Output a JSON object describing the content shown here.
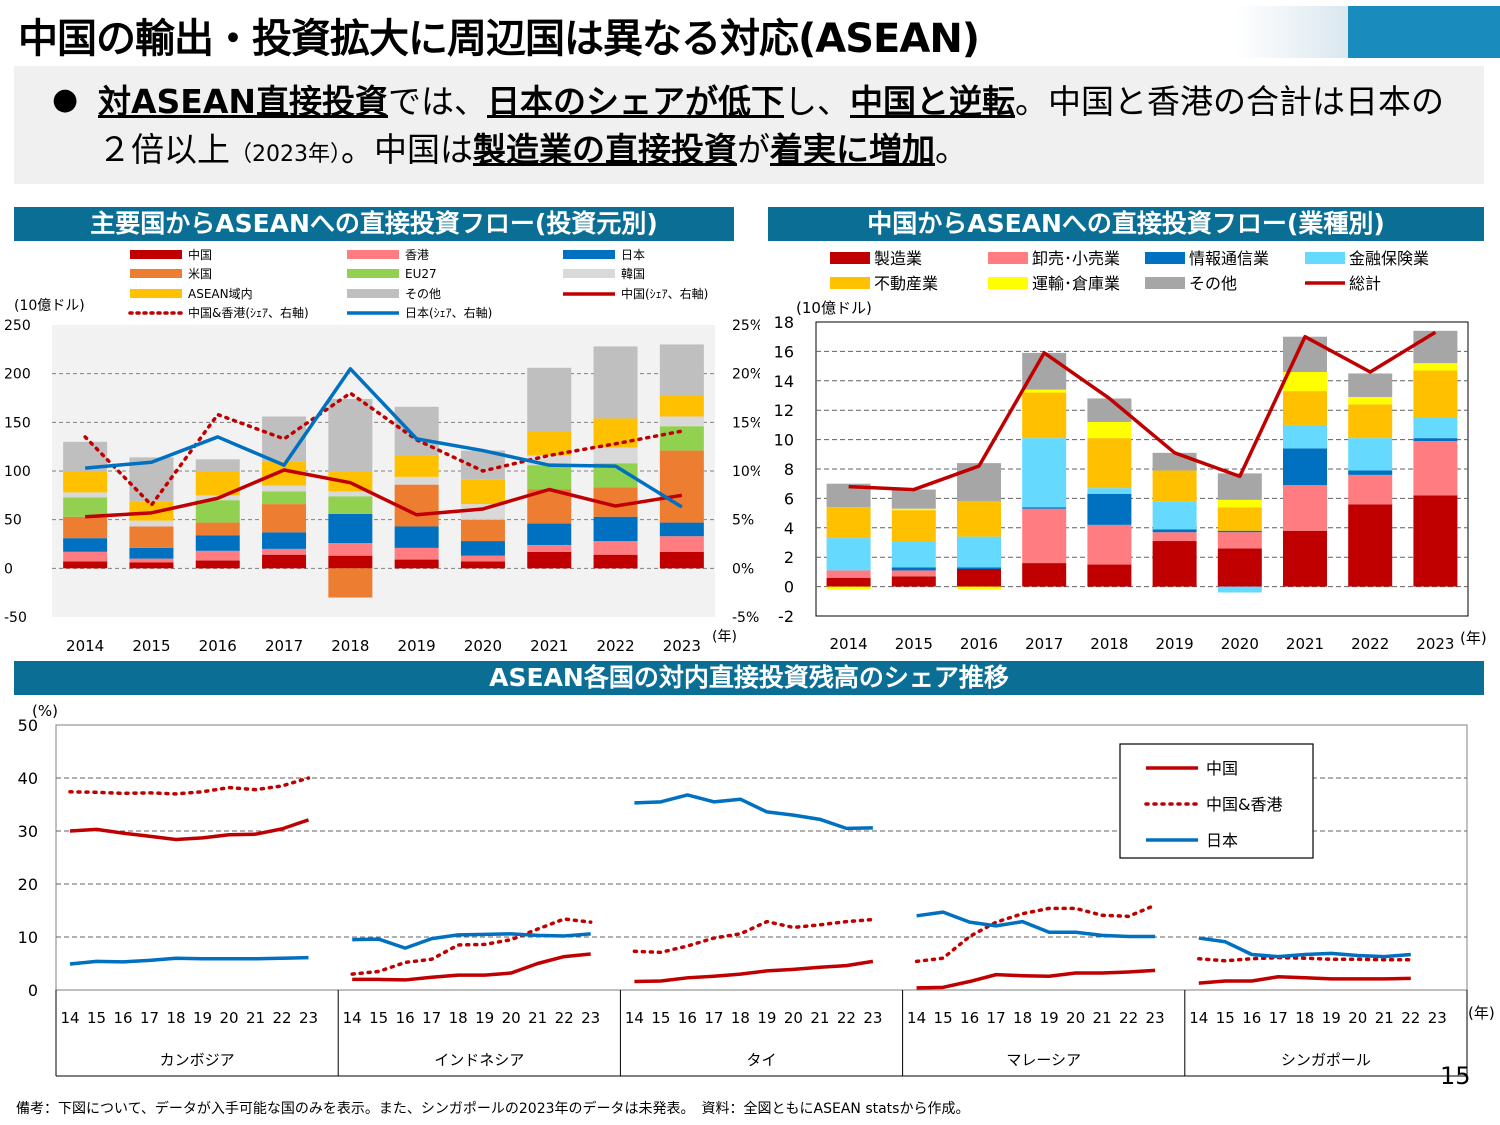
{
  "title": "中国の輸出・投資拡大に周辺国は異なる対応(ASEAN)",
  "bullet": {
    "t1": "対ASEAN直接投資",
    "t2": "では、",
    "t3": "日本のシェアが低下",
    "t4": "し、",
    "t5": "中国と逆転",
    "t6": "。中国と香港の合計は日本の２倍以上",
    "t7": "（2023年）",
    "t8": "。中国は",
    "t9": "製造業の直接投資",
    "t10": "が",
    "t11": "着実に増加",
    "t12": "。"
  },
  "colors": {
    "china": "#c00000",
    "hongkong": "#ff7c80",
    "japan": "#0070c0",
    "us": "#ed7d31",
    "eu": "#92d050",
    "korea": "#d9d9d9",
    "asean": "#ffc000",
    "other": "#bfbfbf",
    "header": "#0a6e95",
    "manufacturing": "#c00000",
    "wholesale": "#ff7c80",
    "ict": "#0070c0",
    "finance": "#66d9ff",
    "realestate": "#ffc000",
    "transport": "#ffff00",
    "others2": "#a6a6a6"
  },
  "note": "備考：下図について、データが入手可能な国のみを表示。また、シンガポールの2023年のデータは未発表。　資料：全図ともにASEAN statsから作成。",
  "page_number": "15",
  "chart_data": [
    {
      "type": "bar",
      "title": "主要国からASEANへの直接投資フロー(投資元別)",
      "ylabel": "(10億ドル)",
      "xlabel": "(年)",
      "ylim": [
        -50,
        250
      ],
      "y2lim": [
        -5,
        25
      ],
      "yticks": [
        -50,
        0,
        50,
        100,
        150,
        200,
        250
      ],
      "y2ticks": [
        "-5%",
        "0%",
        "5%",
        "10%",
        "15%",
        "20%",
        "25%"
      ],
      "categories": [
        "2014",
        "2015",
        "2016",
        "2017",
        "2018",
        "2019",
        "2020",
        "2021",
        "2022",
        "2023"
      ],
      "legend": [
        "中国",
        "香港",
        "日本",
        "米国",
        "EU27",
        "韓国",
        "ASEAN域内",
        "その他",
        "中国(ｼｪｱ、右軸)",
        "中国&香港(ｼｪｱ、右軸)",
        "日本(ｼｪｱ、右軸)"
      ],
      "series": [
        {
          "name": "中国",
          "values": [
            7,
            6,
            8,
            14,
            13,
            9,
            7,
            17,
            14,
            17
          ]
        },
        {
          "name": "香港",
          "values": [
            10,
            4,
            10,
            6,
            13,
            12,
            6,
            7,
            14,
            16
          ]
        },
        {
          "name": "日本",
          "values": [
            14,
            11,
            16,
            17,
            30,
            22,
            15,
            22,
            25,
            14
          ]
        },
        {
          "name": "米国",
          "values": [
            22,
            22,
            13,
            29,
            -30,
            43,
            22,
            35,
            30,
            74
          ]
        },
        {
          "name": "EU27",
          "values": [
            20,
            0,
            23,
            13,
            18,
            0,
            0,
            25,
            25,
            25
          ]
        },
        {
          "name": "韓国",
          "values": [
            5,
            6,
            5,
            6,
            5,
            8,
            16,
            10,
            16,
            10
          ]
        },
        {
          "name": "ASEAN域内",
          "values": [
            22,
            20,
            25,
            25,
            20,
            22,
            25,
            25,
            30,
            22
          ]
        },
        {
          "name": "その他",
          "values": [
            30,
            45,
            12,
            46,
            75,
            50,
            30,
            65,
            74,
            52
          ]
        }
      ],
      "lines": [
        {
          "name": "中国(ｼｪｱ、右軸)",
          "style": "solid",
          "values": [
            5.3,
            5.7,
            7.2,
            10.1,
            8.8,
            5.5,
            6.1,
            8.1,
            6.4,
            7.5
          ]
        },
        {
          "name": "中国&香港(ｼｪｱ、右軸)",
          "style": "dotted",
          "values": [
            13.5,
            6.5,
            15.8,
            13.3,
            18.0,
            13.2,
            10.0,
            11.6,
            12.8,
            14.1
          ]
        },
        {
          "name": "日本(ｼｪｱ、右軸)",
          "style": "solid",
          "values": [
            10.3,
            10.9,
            13.5,
            10.6,
            20.5,
            13.3,
            12.1,
            10.6,
            10.5,
            6.3
          ]
        }
      ]
    },
    {
      "type": "bar",
      "title": "中国からASEANへの直接投資フロー(業種別)",
      "ylabel": "(10億ドル)",
      "xlabel": "(年)",
      "ylim": [
        -2,
        18
      ],
      "yticks": [
        -2,
        0,
        2,
        4,
        6,
        8,
        10,
        12,
        14,
        16,
        18
      ],
      "categories": [
        "2014",
        "2015",
        "2016",
        "2017",
        "2018",
        "2019",
        "2020",
        "2021",
        "2022",
        "2023"
      ],
      "legend": [
        "製造業",
        "卸売･小売業",
        "情報通信業",
        "金融保険業",
        "不動産業",
        "運輸･倉庫業",
        "その他",
        "総計"
      ],
      "series": [
        {
          "name": "製造業",
          "values": [
            0.6,
            0.7,
            1.2,
            1.6,
            1.5,
            3.1,
            2.6,
            3.8,
            5.6,
            6.2
          ]
        },
        {
          "name": "卸売･小売業",
          "values": [
            0.5,
            0.4,
            0.0,
            3.7,
            2.7,
            0.6,
            1.1,
            3.1,
            2.0,
            3.7
          ]
        },
        {
          "name": "情報通信業",
          "values": [
            0.0,
            0.2,
            0.1,
            0.1,
            2.1,
            0.2,
            0.1,
            2.5,
            0.3,
            0.2
          ]
        },
        {
          "name": "金融保険業",
          "values": [
            2.2,
            1.8,
            2.1,
            4.7,
            0.4,
            1.9,
            -0.4,
            1.6,
            2.2,
            1.4
          ]
        },
        {
          "name": "不動産業",
          "values": [
            2.1,
            2.1,
            2.4,
            3.1,
            3.4,
            2.1,
            1.6,
            2.3,
            2.3,
            3.2
          ]
        },
        {
          "name": "運輸･倉庫業",
          "values": [
            -0.2,
            0.1,
            -0.2,
            0.2,
            1.1,
            0.0,
            0.5,
            1.3,
            0.5,
            0.5
          ]
        },
        {
          "name": "その他",
          "values": [
            1.6,
            1.3,
            2.6,
            2.5,
            1.6,
            1.2,
            1.8,
            2.4,
            1.6,
            2.2
          ]
        }
      ],
      "lines": [
        {
          "name": "総計",
          "style": "solid",
          "values": [
            6.8,
            6.6,
            8.2,
            15.9,
            12.8,
            9.1,
            7.5,
            17.0,
            14.6,
            17.3
          ]
        }
      ]
    },
    {
      "type": "line",
      "title": "ASEAN各国の対内直接投資残高のシェア推移",
      "ylabel": "(%)",
      "xlabel": "(年)",
      "ylim": [
        0,
        50
      ],
      "yticks": [
        0,
        10,
        20,
        30,
        40,
        50
      ],
      "x_ticks": [
        "14",
        "15",
        "16",
        "17",
        "18",
        "19",
        "20",
        "21",
        "22",
        "23"
      ],
      "legend": [
        "中国",
        "中国&香港",
        "日本"
      ],
      "countries": [
        {
          "name": "カンボジア",
          "years": [
            "14",
            "15",
            "16",
            "17",
            "18",
            "19",
            "20",
            "21",
            "22",
            "23"
          ],
          "china": [
            30.0,
            30.3,
            29.6,
            29.0,
            28.4,
            28.7,
            29.3,
            29.4,
            30.4,
            32.1
          ],
          "china_hk": [
            37.4,
            37.3,
            37.1,
            37.2,
            37.0,
            37.4,
            38.2,
            37.8,
            38.5,
            40.0
          ],
          "japan": [
            4.9,
            5.4,
            5.3,
            5.6,
            6.0,
            5.9,
            5.9,
            5.9,
            6.0,
            6.1
          ]
        },
        {
          "name": "インドネシア",
          "years": [
            "14",
            "15",
            "16",
            "17",
            "18",
            "19",
            "20",
            "21",
            "22",
            "23"
          ],
          "china": [
            2.0,
            2.0,
            1.9,
            2.4,
            2.8,
            2.8,
            3.2,
            5.0,
            6.3,
            6.8
          ],
          "china_hk": [
            3.0,
            3.5,
            5.2,
            5.8,
            8.5,
            8.6,
            9.5,
            11.5,
            13.4,
            12.8
          ],
          "japan": [
            9.5,
            9.6,
            7.9,
            9.7,
            10.4,
            10.5,
            10.6,
            10.3,
            10.2,
            10.6
          ]
        },
        {
          "name": "タイ",
          "years": [
            "14",
            "15",
            "16",
            "17",
            "18",
            "19",
            "20",
            "21",
            "22",
            "23"
          ],
          "china": [
            1.6,
            1.7,
            2.3,
            2.6,
            3.0,
            3.6,
            3.9,
            4.3,
            4.6,
            5.4
          ],
          "china_hk": [
            7.3,
            7.1,
            8.3,
            9.8,
            10.6,
            12.9,
            11.8,
            12.3,
            12.9,
            13.3
          ],
          "japan": [
            35.3,
            35.5,
            36.8,
            35.5,
            36.0,
            33.6,
            33.0,
            32.2,
            30.5,
            30.6
          ]
        },
        {
          "name": "マレーシア",
          "years": [
            "14",
            "15",
            "16",
            "17",
            "18",
            "19",
            "20",
            "21",
            "22",
            "23"
          ],
          "china": [
            0.4,
            0.5,
            1.6,
            2.9,
            2.7,
            2.6,
            3.2,
            3.2,
            3.4,
            3.7
          ],
          "china_hk": [
            5.4,
            6.0,
            10.1,
            12.8,
            14.4,
            15.4,
            15.4,
            14.1,
            13.9,
            16.0
          ],
          "japan": [
            14.0,
            14.7,
            12.8,
            12.1,
            12.9,
            10.9,
            10.9,
            10.3,
            10.1,
            10.1
          ]
        },
        {
          "name": "シンガポール",
          "years": [
            "14",
            "15",
            "16",
            "17",
            "18",
            "19",
            "20",
            "21",
            "22"
          ],
          "china": [
            1.3,
            1.7,
            1.7,
            2.5,
            2.3,
            2.1,
            2.1,
            2.1,
            2.2
          ],
          "china_hk": [
            5.9,
            5.5,
            5.9,
            6.1,
            6.0,
            5.8,
            5.8,
            5.7,
            5.7
          ],
          "japan": [
            9.8,
            9.1,
            6.7,
            6.3,
            6.7,
            6.9,
            6.5,
            6.3,
            6.7
          ]
        }
      ]
    }
  ]
}
